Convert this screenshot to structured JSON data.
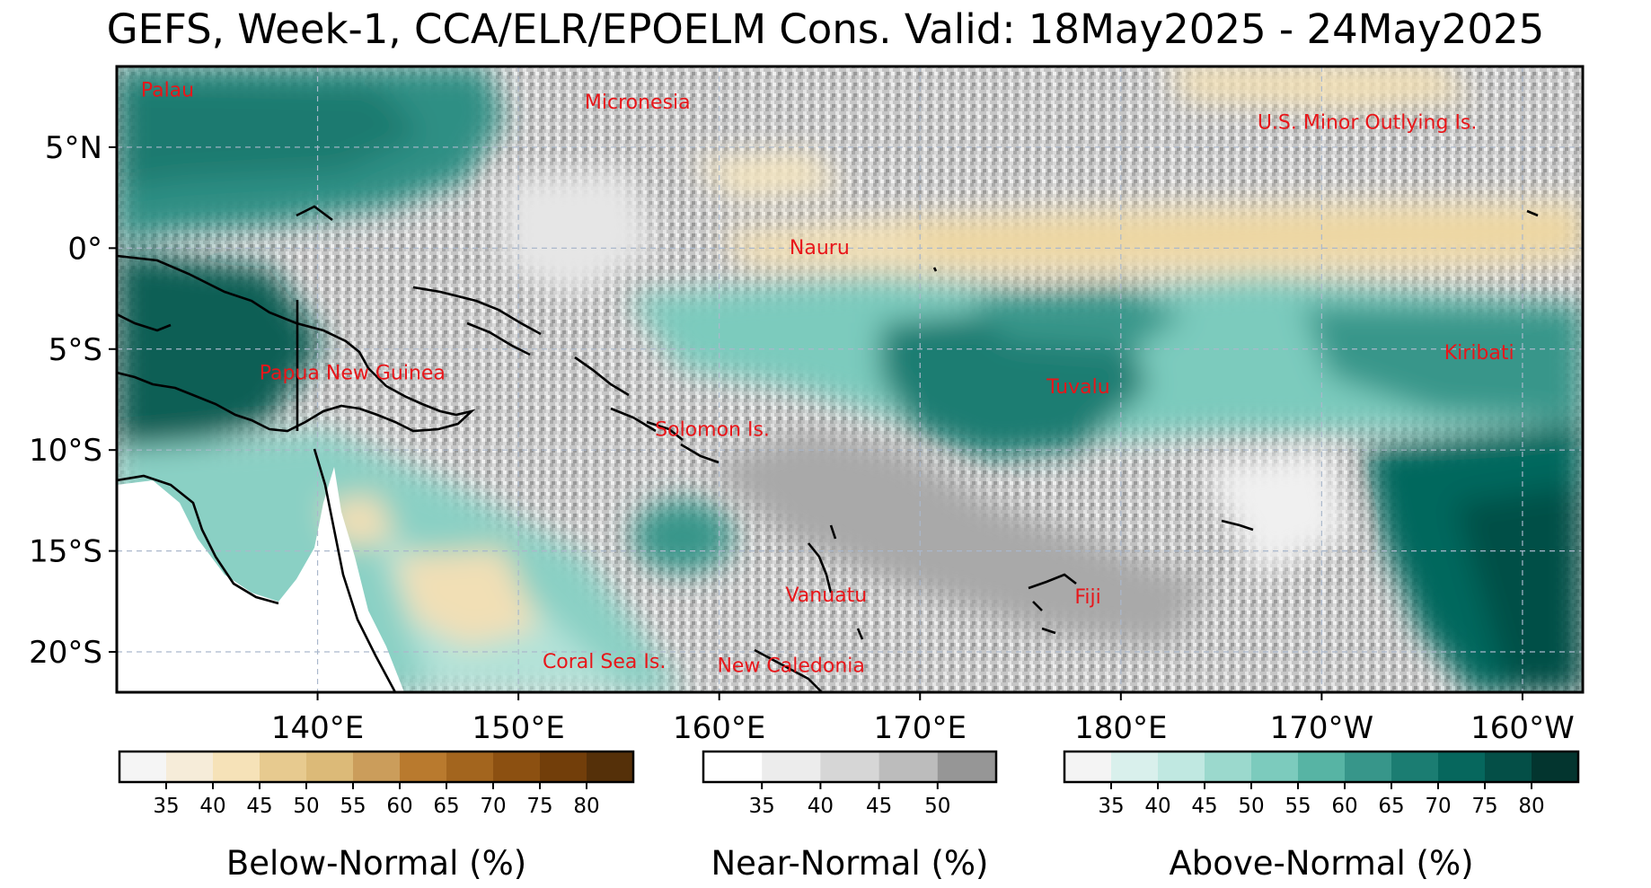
{
  "title": "GEFS, Week-1, CCA/ELR/EPOELM Cons. Valid: 18May2025 - 24May2025",
  "map": {
    "extent": {
      "lon_min": 130,
      "lon_max": 203,
      "lat_min": -22,
      "lat_max": 9
    },
    "lat_ticks": [
      {
        "lat": 5,
        "label": "5°N"
      },
      {
        "lat": 0,
        "label": "0°"
      },
      {
        "lat": -5,
        "label": "5°S"
      },
      {
        "lat": -10,
        "label": "10°S"
      },
      {
        "lat": -15,
        "label": "15°S"
      },
      {
        "lat": -20,
        "label": "20°S"
      }
    ],
    "lon_ticks": [
      {
        "lon": 140,
        "label": "140°E"
      },
      {
        "lon": 150,
        "label": "150°E"
      },
      {
        "lon": 160,
        "label": "160°E"
      },
      {
        "lon": 170,
        "label": "170°E"
      },
      {
        "lon": 180,
        "label": "180°E"
      },
      {
        "lon": 190,
        "label": "170°W"
      },
      {
        "lon": 200,
        "label": "160°W"
      }
    ],
    "place_labels": [
      {
        "name": "Palau",
        "lon": 131.2,
        "lat": 7.5
      },
      {
        "name": "Micronesia",
        "lon": 153.3,
        "lat": 6.9
      },
      {
        "name": "U.S. Minor Outlying Is.",
        "lon": 186.8,
        "lat": 5.9
      },
      {
        "name": "Nauru",
        "lon": 163.5,
        "lat": -0.3
      },
      {
        "name": "Papua New Guinea",
        "lon": 137.1,
        "lat": -6.5
      },
      {
        "name": "Kiribati",
        "lon": 196.1,
        "lat": -5.5
      },
      {
        "name": "Tuvalu",
        "lon": 176.3,
        "lat": -7.2
      },
      {
        "name": "Solomon Is.",
        "lon": 156.8,
        "lat": -9.3
      },
      {
        "name": "Vanuatu",
        "lon": 163.3,
        "lat": -17.5
      },
      {
        "name": "Fiji",
        "lon": 177.7,
        "lat": -17.6
      },
      {
        "name": "Coral Sea Is.",
        "lon": 151.2,
        "lat": -20.8
      },
      {
        "name": "New Caledonia",
        "lon": 159.9,
        "lat": -21.0
      }
    ]
  },
  "colorbars": [
    {
      "title": "Below-Normal (%)",
      "ticks": [
        "35",
        "40",
        "45",
        "50",
        "55",
        "60",
        "65",
        "70",
        "75",
        "80"
      ],
      "colors": [
        "#f5f5f5",
        "#f6ecd9",
        "#f6e2b8",
        "#e7ca8f",
        "#dcba78",
        "#cb9d5b",
        "#b97a2e",
        "#a3651e",
        "#8c5011",
        "#723e0a",
        "#553009"
      ]
    },
    {
      "title": "Near-Normal (%)",
      "ticks": [
        "35",
        "40",
        "45",
        "50"
      ],
      "colors": [
        "#ffffff",
        "#ececec",
        "#d6d6d6",
        "#bcbcbc",
        "#969696"
      ]
    },
    {
      "title": "Above-Normal (%)",
      "ticks": [
        "35",
        "40",
        "45",
        "50",
        "55",
        "60",
        "65",
        "70",
        "75",
        "80"
      ],
      "colors": [
        "#f4f4f4",
        "#d9f0ec",
        "#c0e8e1",
        "#9bd9cd",
        "#7ccbbd",
        "#57b4a4",
        "#37968a",
        "#1b7d72",
        "#06675d",
        "#044f47",
        "#03352f"
      ]
    }
  ]
}
